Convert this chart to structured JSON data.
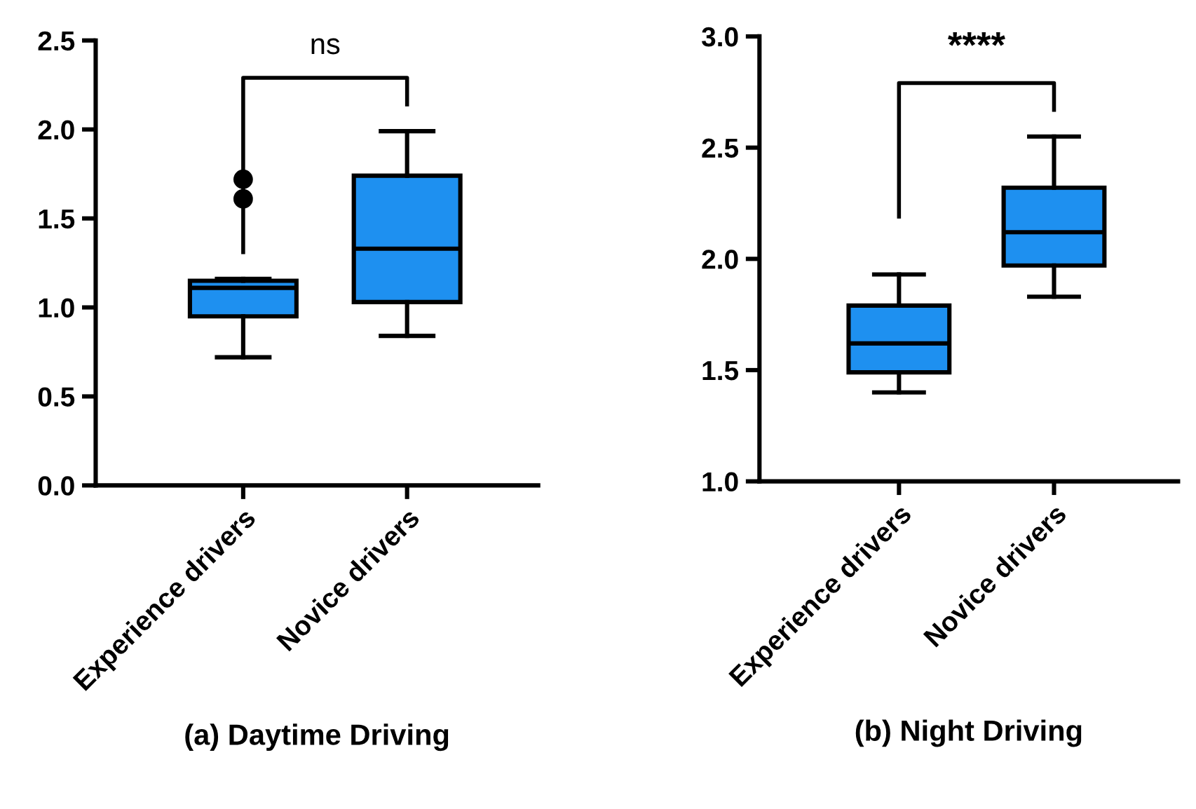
{
  "chart_data": [
    {
      "type": "box",
      "xlabel": "(a) Daytime Driving",
      "categories": [
        "Experience drivers",
        "Novice drivers"
      ],
      "color": "#1e90f0",
      "ylim": [
        0,
        2.5
      ],
      "yticks": [
        {
          "value": 0,
          "label": "0.0"
        },
        0.5,
        {
          "value": 1,
          "label": "1.0"
        },
        1.5,
        {
          "value": 2,
          "label": "2.0"
        },
        2.5
      ],
      "annotations": [
        "ns"
      ],
      "boxes": [
        {
          "low": 0.72,
          "q1": 0.95,
          "median": 1.11,
          "q3": 1.15,
          "high": 1.16,
          "outliers": [
            1.61,
            1.72
          ]
        },
        {
          "low": 0.84,
          "q1": 1.03,
          "median": 1.33,
          "q3": 1.74,
          "high": 1.99
        }
      ]
    },
    {
      "type": "box",
      "xlabel": "(b) Night Driving",
      "categories": [
        "Experience drivers",
        "Novice drivers"
      ],
      "color": "#1e90f0",
      "ylim": [
        1.0,
        3.0
      ],
      "yticks": [
        {
          "value": 1,
          "label": "1.0"
        },
        1.5,
        {
          "value": 2,
          "label": "2.0"
        },
        2.5,
        {
          "value": 3,
          "label": "3.0"
        }
      ],
      "annotations": [
        "****"
      ],
      "boxes": [
        {
          "low": 1.4,
          "q1": 1.49,
          "median": 1.62,
          "q3": 1.79,
          "high": 1.93
        },
        {
          "low": 1.83,
          "q1": 1.97,
          "median": 2.12,
          "q3": 2.32,
          "high": 2.55
        }
      ]
    }
  ]
}
